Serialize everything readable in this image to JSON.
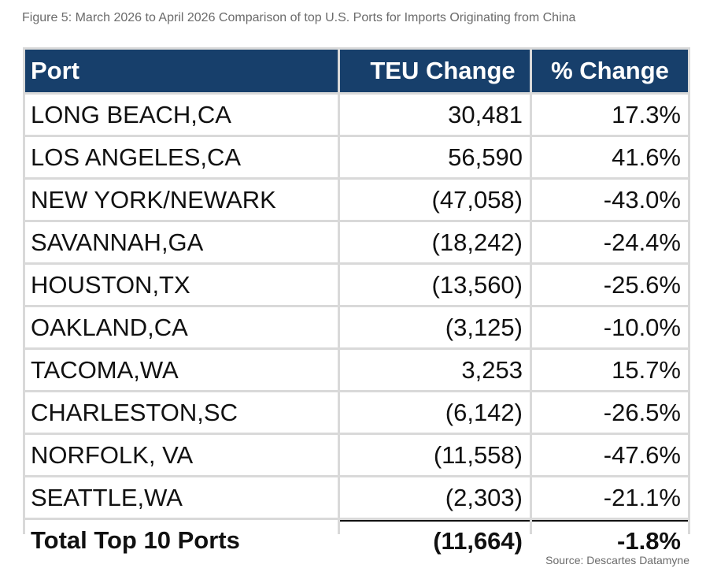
{
  "caption": "Figure 5: March 2026 to April 2026 Comparison of top U.S. Ports for Imports Originating from China",
  "table": {
    "headers": [
      "Port",
      "TEU Change",
      "% Change"
    ],
    "rows": [
      {
        "port": "LONG BEACH,CA",
        "teu": "30,481",
        "pct": "17.3%"
      },
      {
        "port": "LOS ANGELES,CA",
        "teu": "56,590",
        "pct": "41.6%"
      },
      {
        "port": "NEW YORK/NEWARK",
        "teu": "(47,058)",
        "pct": "-43.0%"
      },
      {
        "port": "SAVANNAH,GA",
        "teu": "(18,242)",
        "pct": "-24.4%"
      },
      {
        "port": "HOUSTON,TX",
        "teu": "(13,560)",
        "pct": "-25.6%"
      },
      {
        "port": "OAKLAND,CA",
        "teu": "(3,125)",
        "pct": "-10.0%"
      },
      {
        "port": "TACOMA,WA",
        "teu": "3,253",
        "pct": "15.7%"
      },
      {
        "port": "CHARLESTON,SC",
        "teu": "(6,142)",
        "pct": "-26.5%"
      },
      {
        "port": "NORFOLK, VA",
        "teu": "(11,558)",
        "pct": "-47.6%"
      },
      {
        "port": "SEATTLE,WA",
        "teu": "(2,303)",
        "pct": "-21.1%"
      }
    ],
    "total": {
      "port": "Total Top 10 Ports",
      "teu": "(11,664)",
      "pct": "-1.8%"
    }
  },
  "source": "Source: Descartes Datamyne",
  "colors": {
    "header_bg": "#173f6b",
    "header_text": "#ffffff",
    "grid": "#d9d9d9",
    "caption_text": "#6b6b6b"
  }
}
